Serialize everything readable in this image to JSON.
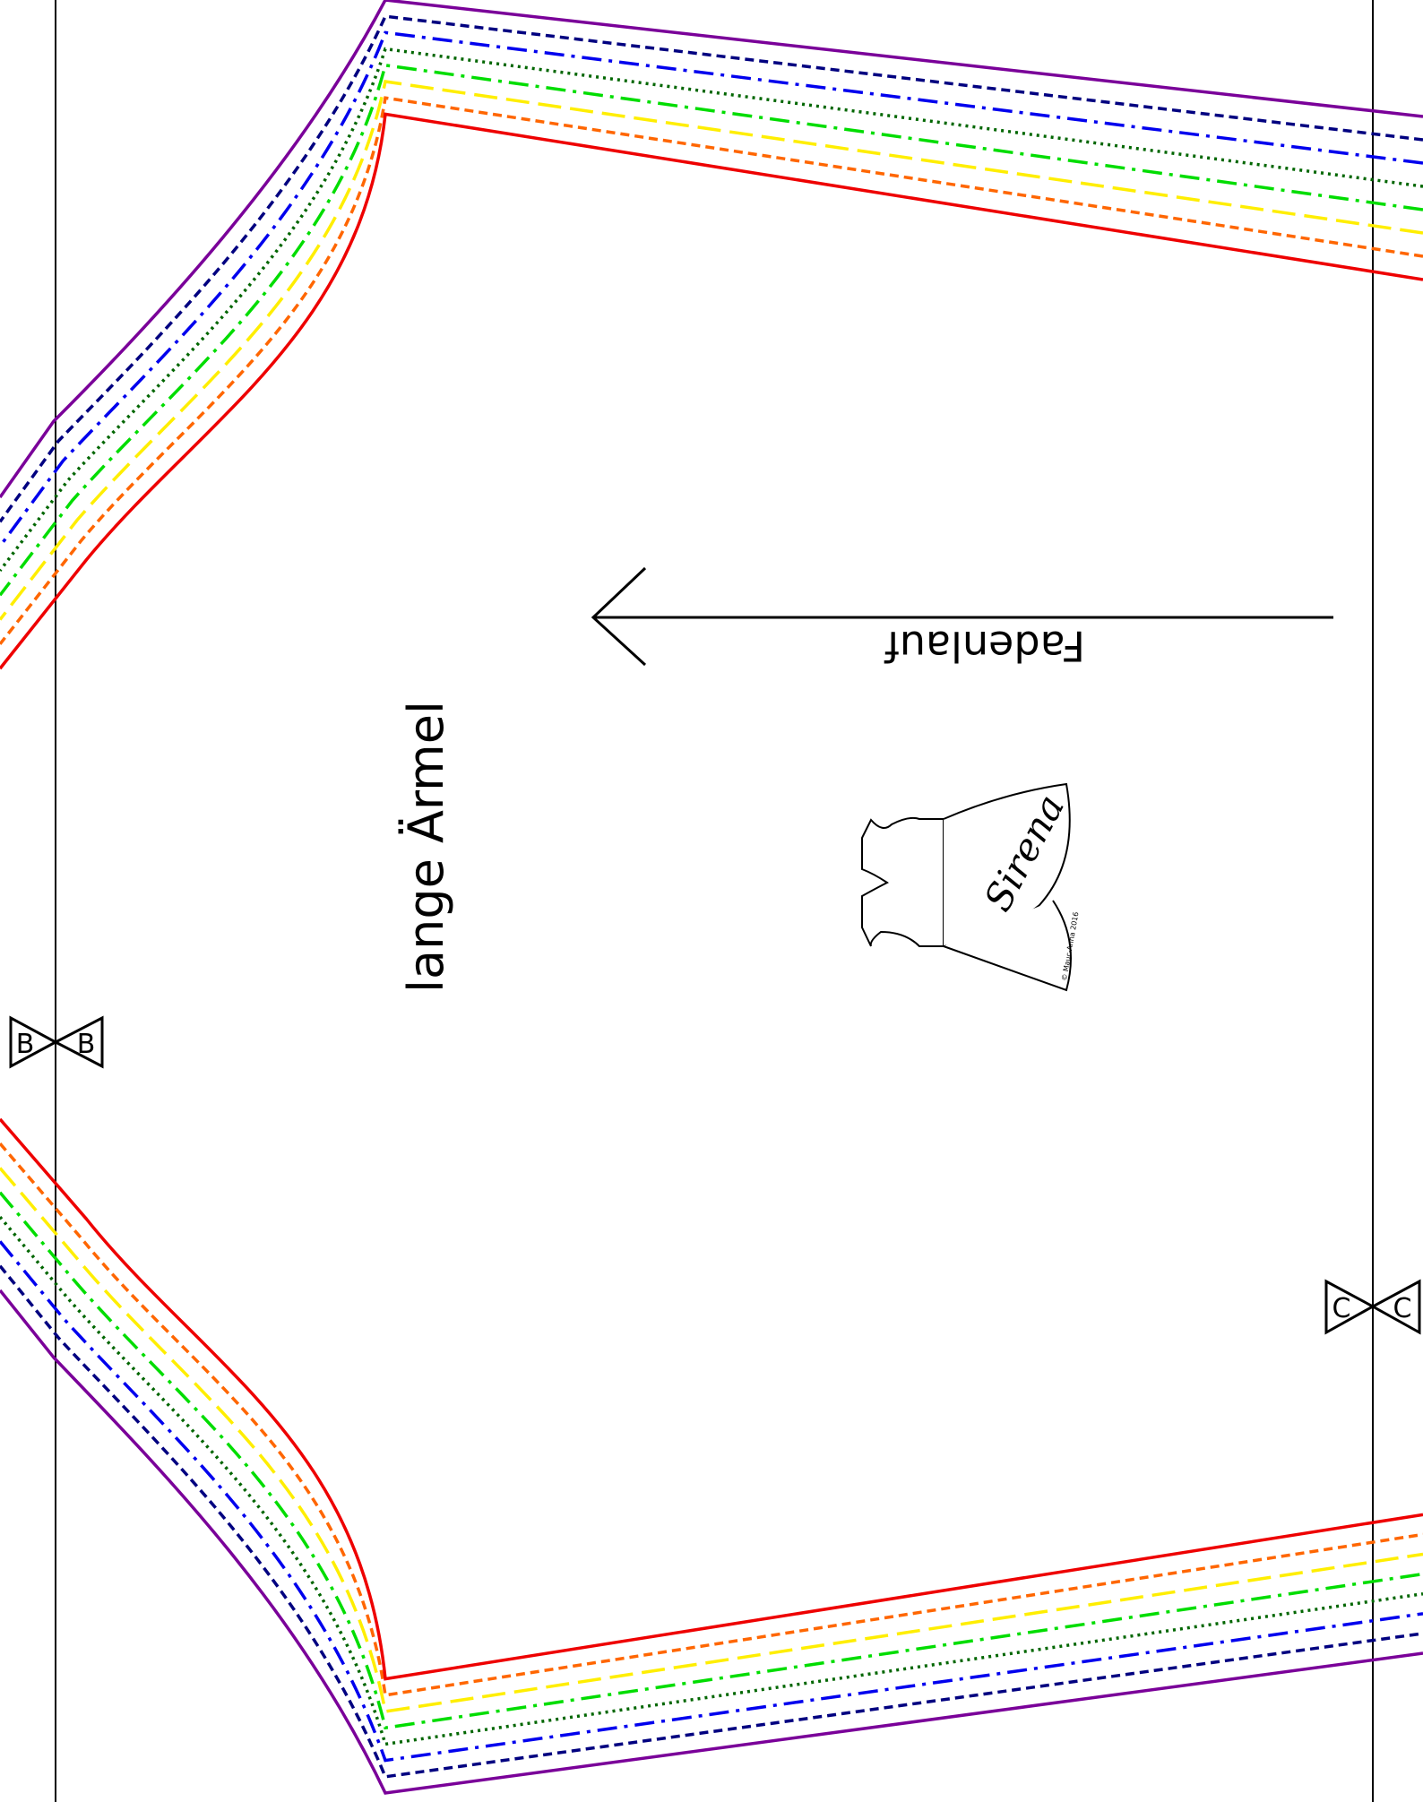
{
  "pattern": {
    "piece_label": "lange Ärmel",
    "grainline_label": "Fadenlauf",
    "notch_left": "B",
    "notch_right": "C",
    "logo": {
      "brand": "Sirena",
      "copyright": "© Mauc-Anna 2016"
    },
    "size_colors": [
      {
        "color": "#7a0099",
        "style": "solid"
      },
      {
        "color": "#000080",
        "style": "dashed"
      },
      {
        "color": "#0000ee",
        "style": "dash-dot"
      },
      {
        "color": "#006600",
        "style": "dotted"
      },
      {
        "color": "#00dd00",
        "style": "dash-dot"
      },
      {
        "color": "#ffee00",
        "style": "long-dash"
      },
      {
        "color": "#ff6600",
        "style": "dashed"
      },
      {
        "color": "#ee0000",
        "style": "solid"
      }
    ]
  }
}
